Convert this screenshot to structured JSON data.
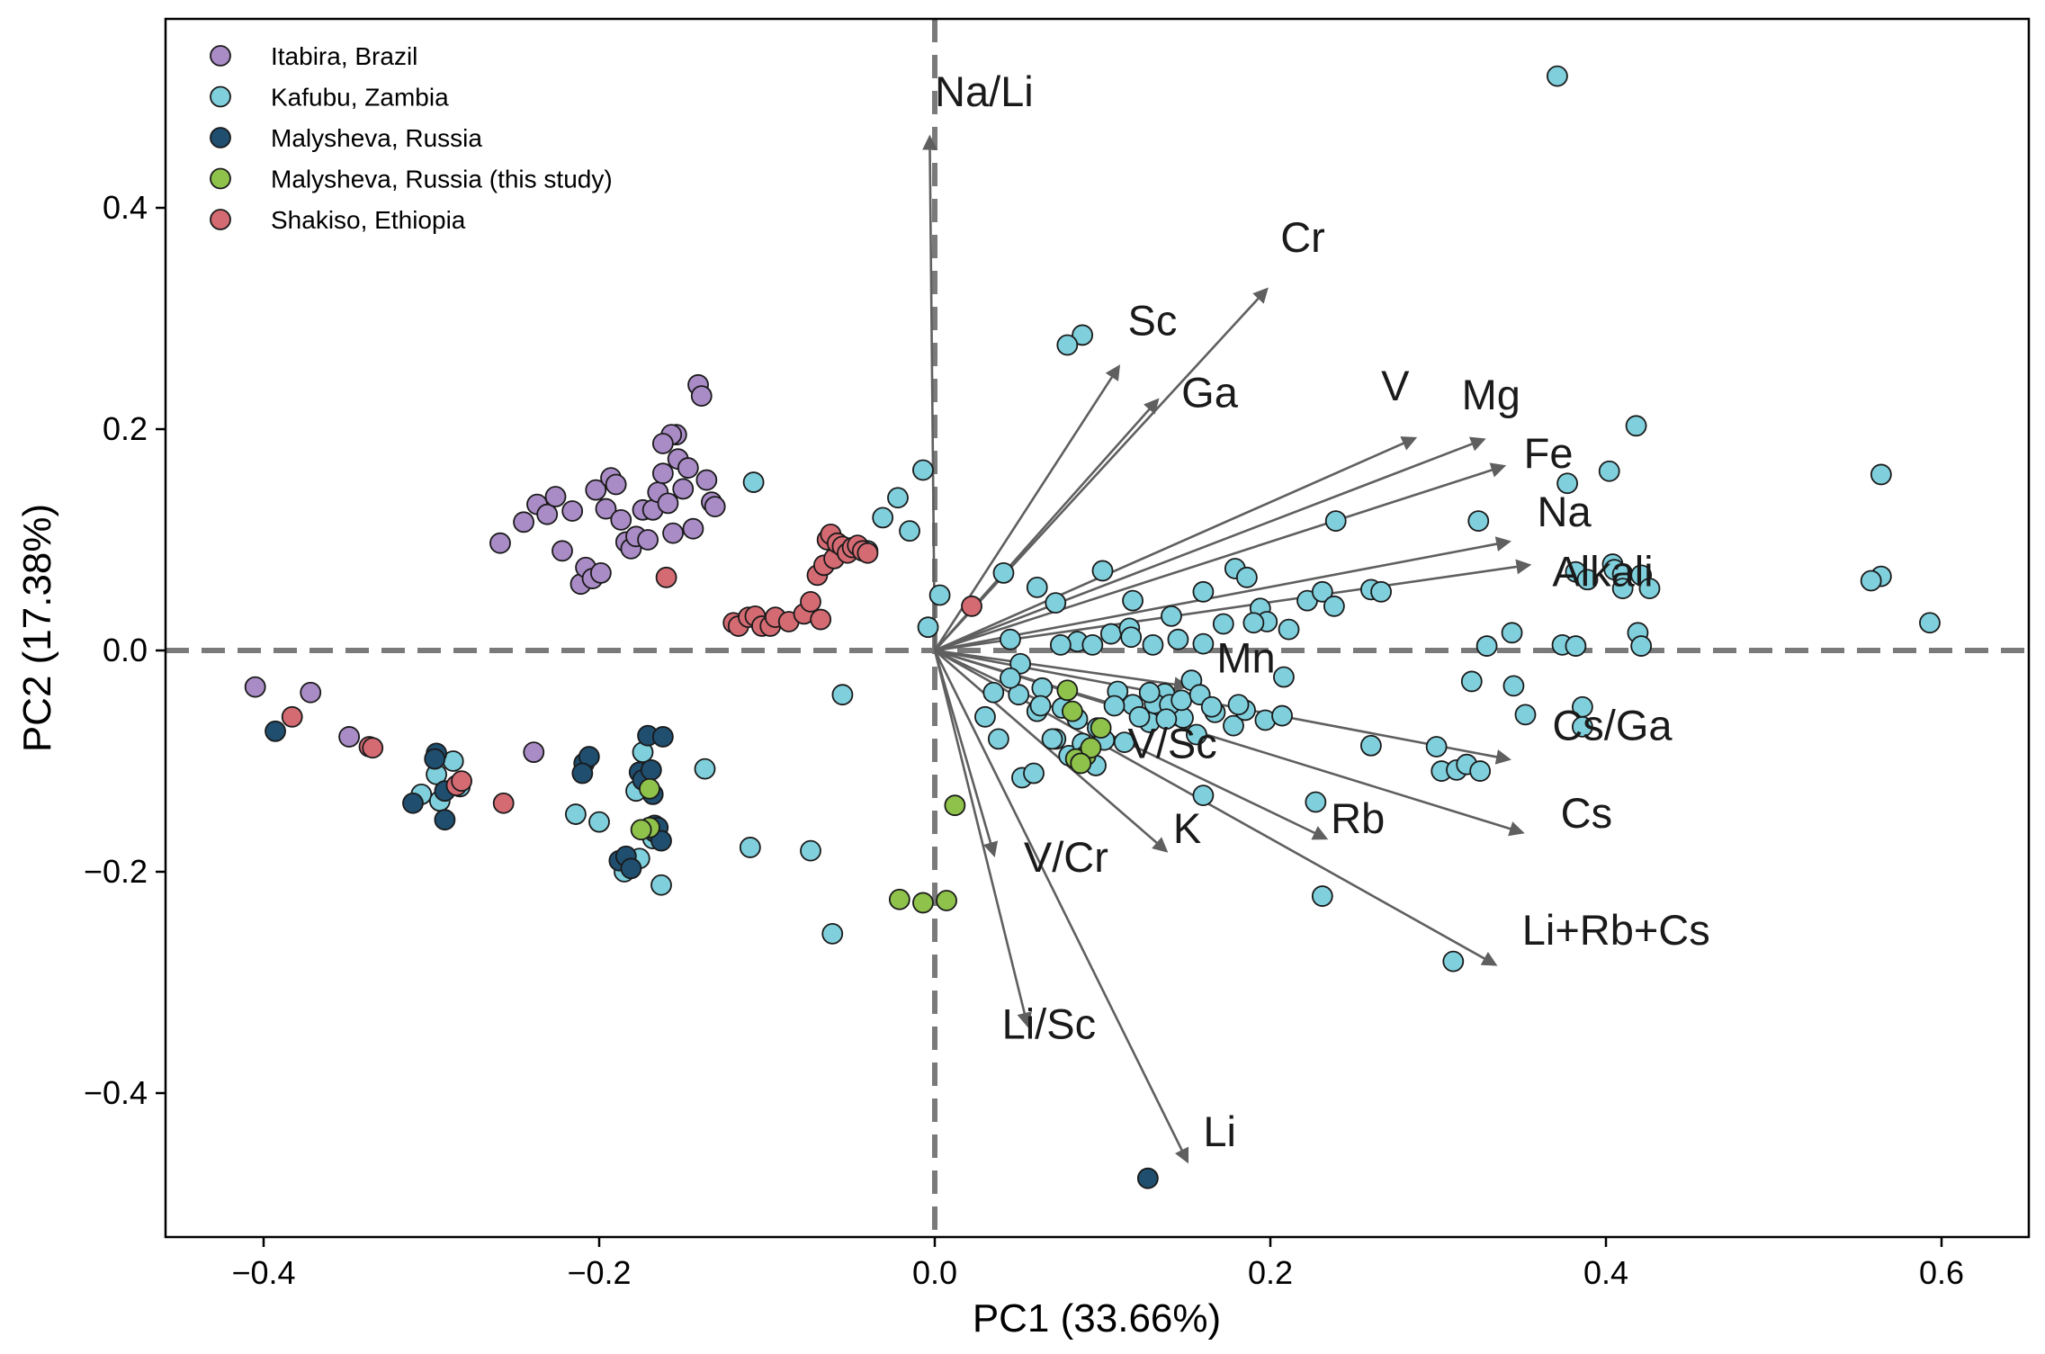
{
  "chart_data": {
    "type": "scatter",
    "title": "",
    "xlabel": "PC1 (33.66%)",
    "ylabel": "PC2 (17.38%)",
    "xlim": [
      -0.46,
      0.64
    ],
    "ylim": [
      -0.53,
      0.57
    ],
    "xticks": [
      -0.4,
      -0.2,
      0.0,
      0.2,
      0.4,
      0.6
    ],
    "xtick_labels": [
      "−0.4",
      "−0.2",
      "0.0",
      "0.2",
      "0.4",
      "0.6"
    ],
    "yticks": [
      -0.4,
      -0.2,
      0.0,
      0.2,
      0.4
    ],
    "ytick_labels": [
      "−0.4",
      "−0.2",
      "0.0",
      "0.2",
      "0.4"
    ],
    "legend_position": "top-left",
    "series": [
      {
        "name": "Itabira, Brazil",
        "color": "#a98bc6",
        "points": [
          [
            -0.405,
            -0.033
          ],
          [
            -0.372,
            -0.038
          ],
          [
            -0.349,
            -0.078
          ],
          [
            -0.239,
            -0.092
          ],
          [
            -0.259,
            0.097
          ],
          [
            -0.245,
            0.116
          ],
          [
            -0.237,
            0.132
          ],
          [
            -0.231,
            0.123
          ],
          [
            -0.226,
            0.139
          ],
          [
            -0.222,
            0.09
          ],
          [
            -0.216,
            0.126
          ],
          [
            -0.211,
            0.06
          ],
          [
            -0.208,
            0.075
          ],
          [
            -0.204,
            0.065
          ],
          [
            -0.202,
            0.145
          ],
          [
            -0.199,
            0.07
          ],
          [
            -0.196,
            0.128
          ],
          [
            -0.193,
            0.156
          ],
          [
            -0.19,
            0.15
          ],
          [
            -0.187,
            0.118
          ],
          [
            -0.184,
            0.098
          ],
          [
            -0.181,
            0.092
          ],
          [
            -0.178,
            0.103
          ],
          [
            -0.174,
            0.127
          ],
          [
            -0.171,
            0.1
          ],
          [
            -0.168,
            0.127
          ],
          [
            -0.165,
            0.143
          ],
          [
            -0.162,
            0.16
          ],
          [
            -0.159,
            0.133
          ],
          [
            -0.156,
            0.106
          ],
          [
            -0.153,
            0.173
          ],
          [
            -0.15,
            0.146
          ],
          [
            -0.147,
            0.165
          ],
          [
            -0.144,
            0.11
          ],
          [
            -0.141,
            0.24
          ],
          [
            -0.139,
            0.23
          ],
          [
            -0.136,
            0.154
          ],
          [
            -0.133,
            0.134
          ],
          [
            -0.131,
            0.13
          ],
          [
            -0.154,
            0.195
          ],
          [
            -0.157,
            0.195
          ],
          [
            -0.162,
            0.187
          ]
        ]
      },
      {
        "name": "Kafubu, Zambia",
        "color": "#7fcfdc",
        "points": [
          [
            0.371,
            0.519
          ],
          [
            0.088,
            0.285
          ],
          [
            0.079,
            0.276
          ],
          [
            0.418,
            0.203
          ],
          [
            0.402,
            0.162
          ],
          [
            0.377,
            0.151
          ],
          [
            0.564,
            0.159
          ],
          [
            0.564,
            0.067
          ],
          [
            0.558,
            0.063
          ],
          [
            0.593,
            0.025
          ],
          [
            0.324,
            0.117
          ],
          [
            0.239,
            0.117
          ],
          [
            0.404,
            0.078
          ],
          [
            0.405,
            0.073
          ],
          [
            0.41,
            0.069
          ],
          [
            0.421,
            0.068
          ],
          [
            0.382,
            0.071
          ],
          [
            0.389,
            0.064
          ],
          [
            0.41,
            0.056
          ],
          [
            0.426,
            0.056
          ],
          [
            0.419,
            0.016
          ],
          [
            0.421,
            0.004
          ],
          [
            0.374,
            0.005
          ],
          [
            0.382,
            0.004
          ],
          [
            0.344,
            0.016
          ],
          [
            0.329,
            0.004
          ],
          [
            0.32,
            -0.028
          ],
          [
            0.345,
            -0.032
          ],
          [
            0.352,
            -0.058
          ],
          [
            0.386,
            -0.051
          ],
          [
            0.386,
            -0.069
          ],
          [
            0.299,
            -0.087
          ],
          [
            0.302,
            -0.109
          ],
          [
            0.311,
            -0.108
          ],
          [
            0.317,
            -0.103
          ],
          [
            0.325,
            -0.109
          ],
          [
            0.26,
            -0.086
          ],
          [
            0.227,
            -0.137
          ],
          [
            0.231,
            -0.222
          ],
          [
            0.309,
            -0.281
          ],
          [
            -0.108,
            0.152
          ],
          [
            -0.031,
            0.12
          ],
          [
            -0.022,
            0.138
          ],
          [
            -0.015,
            0.108
          ],
          [
            -0.007,
            0.163
          ],
          [
            -0.004,
            0.021
          ],
          [
            0.003,
            0.05
          ],
          [
            -0.043,
            0.091
          ],
          [
            -0.04,
            0.09
          ],
          [
            -0.055,
            -0.04
          ],
          [
            -0.11,
            -0.178
          ],
          [
            -0.074,
            -0.181
          ],
          [
            -0.061,
            -0.256
          ],
          [
            -0.137,
            -0.107
          ],
          [
            -0.174,
            -0.092
          ],
          [
            -0.178,
            -0.127
          ],
          [
            -0.168,
            -0.17
          ],
          [
            -0.176,
            -0.188
          ],
          [
            -0.185,
            -0.2
          ],
          [
            -0.163,
            -0.212
          ],
          [
            -0.214,
            -0.148
          ],
          [
            -0.2,
            -0.155
          ],
          [
            -0.306,
            -0.13
          ],
          [
            -0.297,
            -0.112
          ],
          [
            -0.287,
            -0.1
          ],
          [
            -0.283,
            -0.123
          ],
          [
            -0.295,
            -0.136
          ],
          [
            0.041,
            0.07
          ],
          [
            0.061,
            0.057
          ],
          [
            0.072,
            0.043
          ],
          [
            0.1,
            0.072
          ],
          [
            0.118,
            0.045
          ],
          [
            0.141,
            0.031
          ],
          [
            0.16,
            0.053
          ],
          [
            0.179,
            0.074
          ],
          [
            0.186,
            0.066
          ],
          [
            0.194,
            0.038
          ],
          [
            0.198,
            0.026
          ],
          [
            0.211,
            0.019
          ],
          [
            0.222,
            0.045
          ],
          [
            0.231,
            0.053
          ],
          [
            0.238,
            0.04
          ],
          [
            0.26,
            0.055
          ],
          [
            0.266,
            0.053
          ],
          [
            0.085,
            0.008
          ],
          [
            0.105,
            0.015
          ],
          [
            0.116,
            0.02
          ],
          [
            0.13,
            0.005
          ],
          [
            0.145,
            0.01
          ],
          [
            0.16,
            0.006
          ],
          [
            0.172,
            0.024
          ],
          [
            0.19,
            0.025
          ],
          [
            0.208,
            -0.024
          ],
          [
            0.045,
            0.01
          ],
          [
            0.051,
            -0.012
          ],
          [
            0.064,
            -0.034
          ],
          [
            0.076,
            -0.052
          ],
          [
            0.085,
            -0.062
          ],
          [
            0.097,
            -0.07
          ],
          [
            0.109,
            -0.037
          ],
          [
            0.118,
            -0.049
          ],
          [
            0.128,
            -0.065
          ],
          [
            0.137,
            -0.039
          ],
          [
            0.148,
            -0.061
          ],
          [
            0.156,
            -0.076
          ],
          [
            0.167,
            -0.056
          ],
          [
            0.178,
            -0.068
          ],
          [
            0.185,
            -0.054
          ],
          [
            0.197,
            -0.063
          ],
          [
            0.207,
            -0.059
          ],
          [
            0.05,
            -0.04
          ],
          [
            0.061,
            -0.055
          ],
          [
            0.072,
            -0.08
          ],
          [
            0.08,
            -0.095
          ],
          [
            0.091,
            -0.091
          ],
          [
            0.101,
            -0.081
          ],
          [
            0.113,
            -0.083
          ],
          [
            0.122,
            -0.06
          ],
          [
            0.131,
            -0.048
          ],
          [
            0.14,
            -0.049
          ],
          [
            0.153,
            -0.027
          ],
          [
            0.16,
            -0.131
          ],
          [
            0.03,
            -0.06
          ],
          [
            0.038,
            -0.08
          ],
          [
            0.052,
            -0.115
          ],
          [
            0.059,
            -0.111
          ],
          [
            0.07,
            -0.08
          ],
          [
            0.088,
            -0.084
          ],
          [
            0.096,
            -0.104
          ],
          [
            0.035,
            -0.038
          ],
          [
            0.045,
            -0.025
          ],
          [
            0.063,
            -0.05
          ],
          [
            0.075,
            0.005
          ],
          [
            0.094,
            0.005
          ],
          [
            0.107,
            -0.05
          ],
          [
            0.117,
            0.012
          ],
          [
            0.128,
            -0.038
          ],
          [
            0.138,
            -0.062
          ],
          [
            0.147,
            -0.045
          ],
          [
            0.158,
            -0.04
          ],
          [
            0.165,
            -0.051
          ],
          [
            0.181,
            -0.049
          ]
        ]
      },
      {
        "name": "Malysheva, Russia",
        "color": "#1f4e6e",
        "points": [
          [
            0.127,
            -0.477
          ],
          [
            -0.393,
            -0.073
          ],
          [
            -0.311,
            -0.138
          ],
          [
            -0.297,
            -0.093
          ],
          [
            -0.298,
            -0.098
          ],
          [
            -0.292,
            -0.153
          ],
          [
            -0.292,
            -0.127
          ],
          [
            -0.209,
            -0.102
          ],
          [
            -0.206,
            -0.096
          ],
          [
            -0.21,
            -0.111
          ],
          [
            -0.188,
            -0.19
          ],
          [
            -0.184,
            -0.186
          ],
          [
            -0.181,
            -0.197
          ],
          [
            -0.176,
            -0.11
          ],
          [
            -0.174,
            -0.117
          ],
          [
            -0.171,
            -0.077
          ],
          [
            -0.169,
            -0.108
          ],
          [
            -0.168,
            -0.13
          ],
          [
            -0.167,
            -0.158
          ],
          [
            -0.167,
            -0.164
          ],
          [
            -0.165,
            -0.16
          ],
          [
            -0.163,
            -0.172
          ],
          [
            -0.162,
            -0.078
          ]
        ]
      },
      {
        "name": "Malysheva, Russia (this study)",
        "color": "#8fc24b",
        "points": [
          [
            0.079,
            -0.036
          ],
          [
            0.082,
            -0.055
          ],
          [
            0.09,
            -0.095
          ],
          [
            0.084,
            -0.098
          ],
          [
            0.093,
            -0.088
          ],
          [
            0.099,
            -0.07
          ],
          [
            0.087,
            -0.102
          ],
          [
            -0.17,
            -0.125
          ],
          [
            -0.17,
            -0.16
          ],
          [
            -0.175,
            -0.162
          ],
          [
            0.012,
            -0.14
          ],
          [
            -0.021,
            -0.225
          ],
          [
            -0.007,
            -0.228
          ],
          [
            0.007,
            -0.226
          ]
        ]
      },
      {
        "name": "Shakiso, Ethiopia",
        "color": "#d46a72",
        "points": [
          [
            -0.383,
            -0.06
          ],
          [
            -0.337,
            -0.087
          ],
          [
            -0.335,
            -0.088
          ],
          [
            -0.285,
            -0.122
          ],
          [
            -0.282,
            -0.118
          ],
          [
            -0.257,
            -0.138
          ],
          [
            -0.16,
            0.066
          ],
          [
            0.022,
            0.04
          ],
          [
            -0.12,
            0.025
          ],
          [
            -0.117,
            0.022
          ],
          [
            -0.111,
            0.03
          ],
          [
            -0.107,
            0.031
          ],
          [
            -0.103,
            0.022
          ],
          [
            -0.098,
            0.022
          ],
          [
            -0.095,
            0.03
          ],
          [
            -0.087,
            0.026
          ],
          [
            -0.078,
            0.033
          ],
          [
            -0.074,
            0.044
          ],
          [
            -0.07,
            0.068
          ],
          [
            -0.068,
            0.028
          ],
          [
            -0.066,
            0.077
          ],
          [
            -0.064,
            0.1
          ],
          [
            -0.062,
            0.105
          ],
          [
            -0.06,
            0.083
          ],
          [
            -0.058,
            0.097
          ],
          [
            -0.055,
            0.094
          ],
          [
            -0.052,
            0.088
          ],
          [
            -0.049,
            0.093
          ],
          [
            -0.046,
            0.095
          ],
          [
            -0.043,
            0.09
          ],
          [
            -0.04,
            0.088
          ]
        ]
      }
    ],
    "loading_vectors": [
      {
        "name": "Na/Li",
        "x": -0.003,
        "y": 0.462,
        "label_x": 0.0,
        "label_y": 0.492
      },
      {
        "name": "Cr",
        "x": 0.197,
        "y": 0.325,
        "label_x": 0.206,
        "label_y": 0.36
      },
      {
        "name": "Sc",
        "x": 0.109,
        "y": 0.255,
        "label_x": 0.115,
        "label_y": 0.285
      },
      {
        "name": "Ga",
        "x": 0.132,
        "y": 0.225,
        "label_x": 0.147,
        "label_y": 0.22
      },
      {
        "name": "V",
        "x": 0.285,
        "y": 0.191,
        "label_x": 0.266,
        "label_y": 0.226
      },
      {
        "name": "Mg",
        "x": 0.326,
        "y": 0.19,
        "label_x": 0.314,
        "label_y": 0.218
      },
      {
        "name": "Fe",
        "x": 0.338,
        "y": 0.166,
        "label_x": 0.351,
        "label_y": 0.165
      },
      {
        "name": "Na",
        "x": 0.341,
        "y": 0.098,
        "label_x": 0.359,
        "label_y": 0.112
      },
      {
        "name": "Alkali",
        "x": 0.353,
        "y": 0.077,
        "label_x": 0.368,
        "label_y": 0.058
      },
      {
        "name": "Mn",
        "x": 0.149,
        "y": -0.032,
        "label_x": 0.168,
        "label_y": -0.02
      },
      {
        "name": "Cs/Ga",
        "x": 0.341,
        "y": -0.098,
        "label_x": 0.368,
        "label_y": -0.081
      },
      {
        "name": "Cs",
        "x": 0.349,
        "y": -0.164,
        "label_x": 0.373,
        "label_y": -0.16
      },
      {
        "name": "V/Sc",
        "x": 0.127,
        "y": -0.058,
        "label_x": 0.115,
        "label_y": -0.097
      },
      {
        "name": "Rb",
        "x": 0.232,
        "y": -0.169,
        "label_x": 0.236,
        "label_y": -0.165
      },
      {
        "name": "K",
        "x": 0.137,
        "y": -0.18,
        "label_x": 0.142,
        "label_y": -0.174
      },
      {
        "name": "Li+Rb+Cs",
        "x": 0.333,
        "y": -0.283,
        "label_x": 0.35,
        "label_y": -0.266
      },
      {
        "name": "V/Cr",
        "x": 0.035,
        "y": -0.183,
        "label_x": 0.053,
        "label_y": -0.2
      },
      {
        "name": "Li/Sc",
        "x": 0.055,
        "y": -0.337,
        "label_x": 0.04,
        "label_y": -0.351
      },
      {
        "name": "Li",
        "x": 0.15,
        "y": -0.46,
        "label_x": 0.16,
        "label_y": -0.448
      }
    ]
  }
}
